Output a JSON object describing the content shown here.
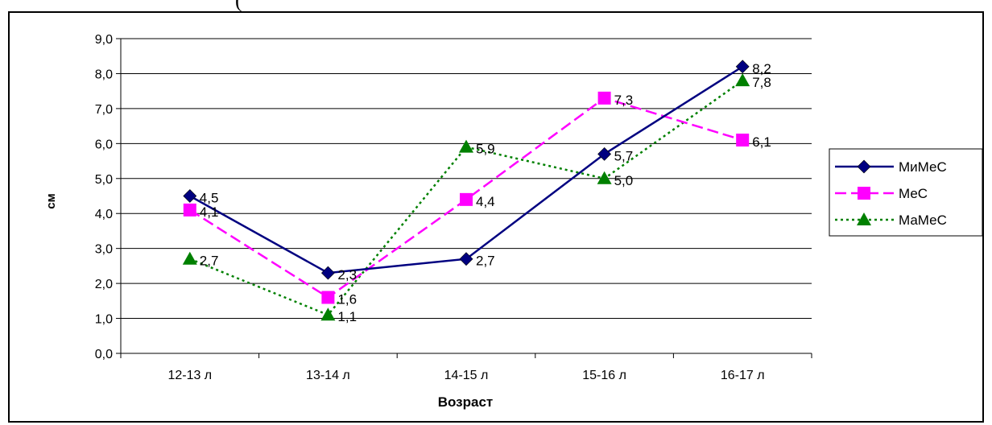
{
  "page_fragment": "(",
  "chart_data": {
    "type": "line",
    "title": "",
    "xlabel": "Возраст",
    "ylabel": "см",
    "categories": [
      "12-13 л",
      "13-14 л",
      "14-15 л",
      "15-16 л",
      "16-17 л"
    ],
    "ylim": [
      0,
      9
    ],
    "ytick_step": 1,
    "ytick_labels": [
      "0,0",
      "1,0",
      "2,0",
      "3,0",
      "4,0",
      "5,0",
      "6,0",
      "7,0",
      "8,0",
      "9,0"
    ],
    "grid": true,
    "legend_position": "right",
    "series": [
      {
        "name": "МиМеС",
        "values": [
          4.5,
          2.3,
          2.7,
          5.7,
          8.2
        ],
        "labels": [
          "4,5",
          "2,3",
          "2,7",
          "5,7",
          "8,2"
        ],
        "color": "#000080",
        "marker": "diamond",
        "line": "solid"
      },
      {
        "name": "МеС",
        "values": [
          4.1,
          1.6,
          4.4,
          7.3,
          6.1
        ],
        "labels": [
          "4,1",
          "1,6",
          "4,4",
          "7,3",
          "6,1"
        ],
        "color": "#FF00FF",
        "marker": "square",
        "line": "dashed"
      },
      {
        "name": "МаМеС",
        "values": [
          2.7,
          1.1,
          5.9,
          5.0,
          7.8
        ],
        "labels": [
          "2,7",
          "1,1",
          "5,9",
          "5,0",
          "7,8"
        ],
        "color": "#008000",
        "marker": "triangle",
        "line": "dotted"
      }
    ]
  }
}
